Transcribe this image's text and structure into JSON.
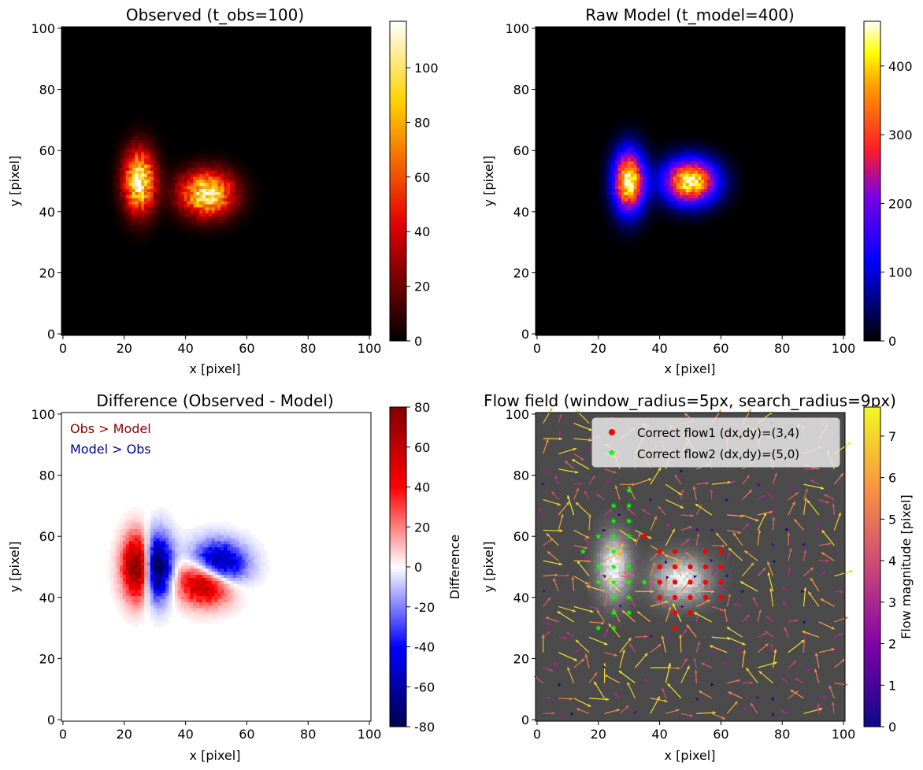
{
  "chart_data": [
    {
      "type": "heatmap",
      "title": "Observed (t_obs=100)",
      "xlabel": "x [pixel]",
      "ylabel": "y [pixel]",
      "xlim": [
        0,
        101
      ],
      "ylim": [
        0,
        101
      ],
      "x_ticks": [
        0,
        20,
        40,
        60,
        80,
        100
      ],
      "y_ticks": [
        0,
        20,
        40,
        60,
        80,
        100
      ],
      "colormap": "hot",
      "colorbar": {
        "label": "",
        "range": [
          0,
          117
        ],
        "ticks": [
          0,
          20,
          40,
          60,
          80,
          100
        ]
      },
      "blobs": [
        {
          "cx": 25,
          "cy": 50,
          "sx": 3.5,
          "sy": 7,
          "peak": 110
        },
        {
          "cx": 47,
          "cy": 46,
          "sx": 6,
          "sy": 5,
          "peak": 105
        }
      ]
    },
    {
      "type": "heatmap",
      "title": "Raw Model (t_model=400)",
      "xlabel": "x [pixel]",
      "ylabel": "y [pixel]",
      "xlim": [
        0,
        101
      ],
      "ylim": [
        0,
        101
      ],
      "x_ticks": [
        0,
        20,
        40,
        60,
        80,
        100
      ],
      "y_ticks": [
        0,
        20,
        40,
        60,
        80,
        100
      ],
      "colormap": "gnuplot2",
      "colorbar": {
        "label": "",
        "range": [
          0,
          465
        ],
        "ticks": [
          0,
          100,
          200,
          300,
          400
        ]
      },
      "blobs": [
        {
          "cx": 30,
          "cy": 50,
          "sx": 3.5,
          "sy": 7,
          "peak": 450
        },
        {
          "cx": 50,
          "cy": 50,
          "sx": 6,
          "sy": 5,
          "peak": 440
        }
      ]
    },
    {
      "type": "heatmap",
      "title": "Difference (Observed - Model)",
      "xlabel": "x [pixel]",
      "ylabel": "y [pixel]",
      "xlim": [
        0,
        101
      ],
      "ylim": [
        0,
        101
      ],
      "x_ticks": [
        0,
        20,
        40,
        60,
        80,
        100
      ],
      "y_ticks": [
        0,
        20,
        40,
        60,
        80,
        100
      ],
      "colormap": "seismic",
      "colorbar": {
        "label": "Difference",
        "range": [
          -80,
          80
        ],
        "ticks": [
          -80,
          -60,
          -40,
          -20,
          0,
          20,
          40,
          60,
          80
        ]
      },
      "annotations": [
        {
          "text": "Obs > Model",
          "color": "#8b0000"
        },
        {
          "text": "Model > Obs",
          "color": "#00008b"
        }
      ],
      "obs_scale": 110,
      "model_scale": 110
    },
    {
      "type": "quiver",
      "title": "Flow field (window_radius=5px, search_radius=9px)",
      "xlabel": "x [pixel]",
      "ylabel": "y [pixel]",
      "xlim": [
        0,
        101
      ],
      "ylim": [
        0,
        101
      ],
      "x_ticks": [
        0,
        20,
        40,
        60,
        80,
        100
      ],
      "y_ticks": [
        0,
        20,
        40,
        60,
        80,
        100
      ],
      "colormap": "plasma",
      "colorbar": {
        "label": "Flow magnitude [pixel]",
        "range": [
          0,
          7.7
        ],
        "ticks": [
          0,
          1,
          2,
          3,
          4,
          5,
          6,
          7
        ]
      },
      "legend": [
        {
          "label": "Correct flow1 (dx,dy)=(3,4)",
          "marker": "circle",
          "color": "#ff0000"
        },
        {
          "label": "Correct flow2 (dx,dy)=(5,0)",
          "marker": "star",
          "color": "#00ff00"
        }
      ],
      "flow1_points": [
        [
          35,
          60
        ],
        [
          40,
          55
        ],
        [
          45,
          55
        ],
        [
          55,
          55
        ],
        [
          60,
          55
        ],
        [
          40,
          50
        ],
        [
          45,
          50
        ],
        [
          50,
          50
        ],
        [
          55,
          50
        ],
        [
          60,
          50
        ],
        [
          40,
          45
        ],
        [
          45,
          45
        ],
        [
          50,
          45
        ],
        [
          55,
          45
        ],
        [
          60,
          45
        ],
        [
          40,
          40
        ],
        [
          45,
          40
        ],
        [
          50,
          40
        ],
        [
          55,
          40
        ],
        [
          60,
          40
        ],
        [
          45,
          35
        ],
        [
          50,
          35
        ],
        [
          45,
          30
        ]
      ],
      "flow2_points": [
        [
          30,
          75
        ],
        [
          25,
          70
        ],
        [
          30,
          70
        ],
        [
          25,
          65
        ],
        [
          30,
          65
        ],
        [
          20,
          60
        ],
        [
          25,
          60
        ],
        [
          30,
          60
        ],
        [
          15,
          55
        ],
        [
          25,
          55
        ],
        [
          20,
          50
        ],
        [
          25,
          50
        ],
        [
          30,
          50
        ],
        [
          20,
          45
        ],
        [
          25,
          45
        ],
        [
          30,
          45
        ],
        [
          35,
          45
        ],
        [
          25,
          40
        ],
        [
          30,
          40
        ],
        [
          25,
          35
        ],
        [
          30,
          35
        ],
        [
          20,
          30
        ],
        [
          25,
          30
        ]
      ]
    }
  ]
}
